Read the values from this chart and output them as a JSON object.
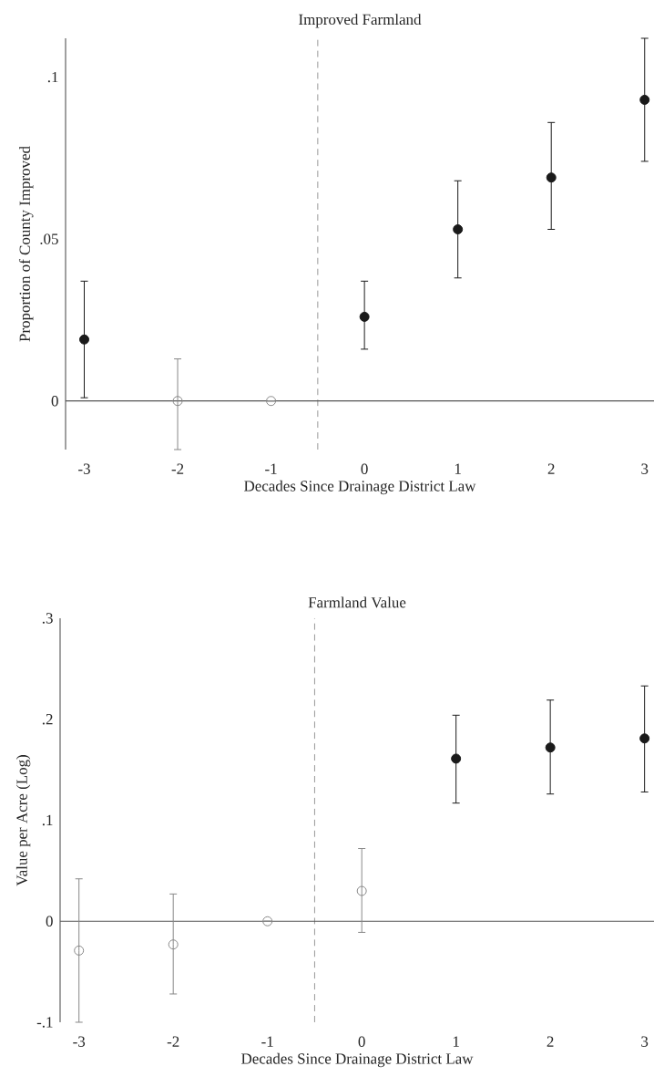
{
  "chart_data": [
    {
      "type": "scatter",
      "title": "Improved Farmland",
      "xlabel": "Decades Since Drainage District Law",
      "ylabel": "Proportion of County Improved",
      "x": [
        -3,
        -2,
        -1,
        0,
        1,
        2,
        3
      ],
      "series": [
        {
          "color": "#1a1a1a",
          "values": [
            0.019,
            null,
            null,
            0.026,
            0.053,
            0.069,
            0.093
          ],
          "errors": [
            [
              0.001,
              0.037
            ],
            null,
            null,
            [
              0.016,
              0.037
            ],
            [
              0.038,
              0.068
            ],
            [
              0.053,
              0.086
            ],
            [
              0.074,
              0.112
            ]
          ]
        },
        {
          "color": "#888888",
          "values": [
            null,
            0,
            0,
            null,
            null,
            null,
            null
          ],
          "errors": [
            null,
            [
              -0.015,
              0.013
            ],
            null,
            null,
            null,
            null,
            null
          ]
        }
      ],
      "xlim": [
        -3.2,
        3.1
      ],
      "ylim": [
        -0.015,
        0.112
      ],
      "xticks": [
        -3,
        -2,
        -1,
        0,
        1,
        2,
        3
      ],
      "yticks": [
        {
          "value": 0,
          "label": "0"
        },
        {
          "value": 0.05,
          "label": ".05"
        },
        {
          "value": 0.1,
          "label": ".1"
        }
      ],
      "marker": "circle",
      "ref_lines": [
        {
          "axis": "x",
          "value": -0.5,
          "color": "#999999",
          "line_style": "dashed"
        },
        {
          "axis": "y",
          "value": 0,
          "color": "#555555",
          "line_style": "solid"
        }
      ]
    },
    {
      "type": "scatter",
      "title": "Farmland Value",
      "xlabel": "Decades Since Drainage District Law",
      "ylabel": "Value per Acre (Log)",
      "x": [
        -3,
        -2,
        -1,
        0,
        1,
        2,
        3
      ],
      "series": [
        {
          "color": "#1a1a1a",
          "values": [
            null,
            null,
            null,
            null,
            0.161,
            0.172,
            0.181
          ],
          "errors": [
            null,
            null,
            null,
            null,
            [
              0.117,
              0.204
            ],
            [
              0.126,
              0.219
            ],
            [
              0.128,
              0.233
            ]
          ]
        },
        {
          "color": "#888888",
          "values": [
            -0.029,
            -0.023,
            0,
            0.03,
            null,
            null,
            null
          ],
          "errors": [
            [
              -0.1,
              0.042
            ],
            [
              -0.072,
              0.027
            ],
            null,
            [
              -0.011,
              0.072
            ],
            null,
            null,
            null
          ]
        }
      ],
      "xlim": [
        -3.2,
        3.1
      ],
      "ylim": [
        -0.1,
        0.3
      ],
      "xticks": [
        -3,
        -2,
        -1,
        0,
        1,
        2,
        3
      ],
      "yticks": [
        {
          "value": -0.1,
          "label": "-.1"
        },
        {
          "value": 0,
          "label": "0"
        },
        {
          "value": 0.1,
          "label": ".1"
        },
        {
          "value": 0.2,
          "label": ".2"
        },
        {
          "value": 0.3,
          "label": ".3"
        }
      ],
      "marker": "circle",
      "ref_lines": [
        {
          "axis": "x",
          "value": -0.5,
          "color": "#999999",
          "line_style": "dashed"
        },
        {
          "axis": "y",
          "value": 0,
          "color": "#555555",
          "line_style": "solid"
        }
      ]
    }
  ]
}
